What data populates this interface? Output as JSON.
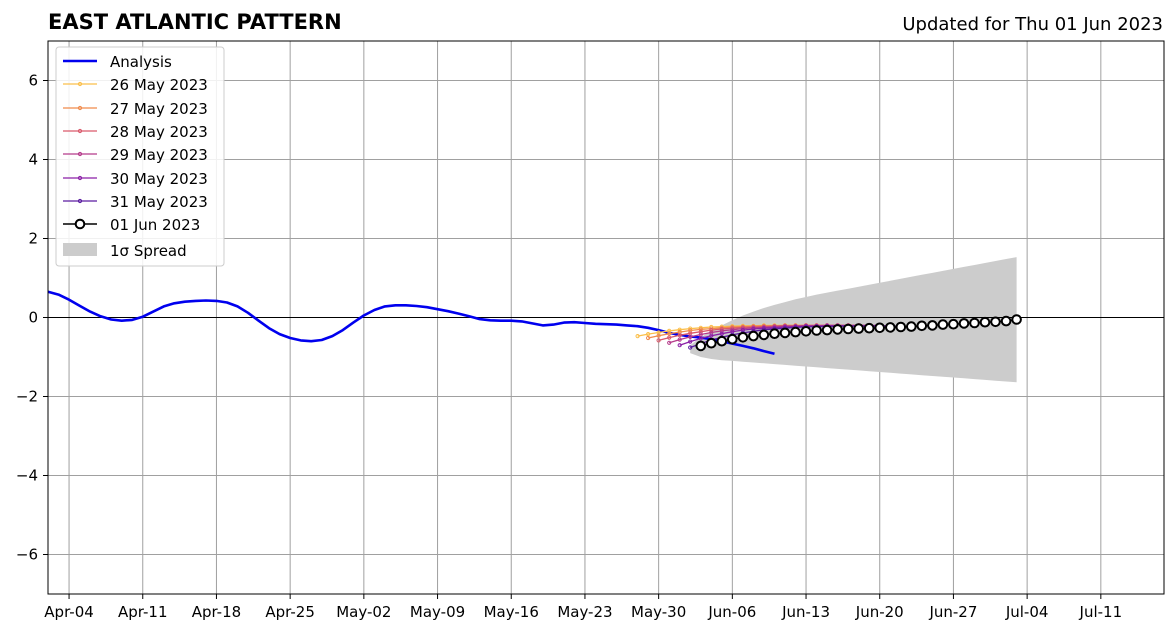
{
  "chart_data": {
    "type": "line",
    "title": "EAST ATLANTIC PATTERN",
    "subtitle": "Updated for Thu 01 Jun 2023",
    "xlabel": "",
    "ylabel": "",
    "xlim": [
      "2023-04-02",
      "2023-07-17"
    ],
    "ylim": [
      -7,
      7
    ],
    "grid": true,
    "legend_position": "top-left",
    "x_tick_labels": [
      "Apr-04",
      "Apr-11",
      "Apr-18",
      "Apr-25",
      "May-02",
      "May-09",
      "May-16",
      "May-23",
      "May-30",
      "Jun-06",
      "Jun-13",
      "Jun-20",
      "Jun-27",
      "Jul-04",
      "Jul-11"
    ],
    "x_tick_dates": [
      "2023-04-04",
      "2023-04-11",
      "2023-04-18",
      "2023-04-25",
      "2023-05-02",
      "2023-05-09",
      "2023-05-16",
      "2023-05-23",
      "2023-05-30",
      "2023-06-06",
      "2023-06-13",
      "2023-06-20",
      "2023-06-27",
      "2023-07-04",
      "2023-07-11"
    ],
    "y_tick_labels": [
      "6",
      "4",
      "2",
      "0",
      "−2",
      "−4",
      "−6"
    ],
    "y_tick_values": [
      6,
      4,
      2,
      0,
      -2,
      -4,
      -6
    ],
    "legend": {
      "analysis": "Analysis",
      "may26": "26 May 2023",
      "may27": "27 May 2023",
      "may28": "28 May 2023",
      "may29": "29 May 2023",
      "may30": "30 May 2023",
      "may31": "31 May 2023",
      "jun01": "01 Jun 2023",
      "spread": "1σ Spread"
    },
    "colors": {
      "analysis": "#0000ee",
      "may26": "#fbbf4a",
      "may27": "#f08a4b",
      "may28": "#d9596b",
      "may29": "#b53a8a",
      "may30": "#8a1fa6",
      "may31": "#5a1ba0",
      "jun01": "#000000",
      "spread": "#cccccc"
    },
    "series": [
      {
        "name": "Analysis",
        "start": "2023-04-02",
        "values": [
          0.65,
          0.58,
          0.45,
          0.3,
          0.15,
          0.03,
          -0.05,
          -0.08,
          -0.06,
          0.02,
          0.15,
          0.28,
          0.36,
          0.4,
          0.42,
          0.43,
          0.42,
          0.38,
          0.28,
          0.12,
          -0.08,
          -0.27,
          -0.42,
          -0.52,
          -0.58,
          -0.6,
          -0.57,
          -0.47,
          -0.32,
          -0.13,
          0.05,
          0.19,
          0.28,
          0.31,
          0.31,
          0.29,
          0.26,
          0.21,
          0.16,
          0.1,
          0.03,
          -0.04,
          -0.07,
          -0.08,
          -0.08,
          -0.1,
          -0.15,
          -0.2,
          -0.18,
          -0.13,
          -0.12,
          -0.14,
          -0.16,
          -0.17,
          -0.18,
          -0.2,
          -0.22,
          -0.26,
          -0.32,
          -0.39,
          -0.44,
          -0.48,
          -0.51,
          -0.55,
          -0.6,
          -0.66,
          -0.72,
          -0.78,
          -0.85,
          -0.92
        ]
      },
      {
        "name": "26 May 2023",
        "start": "2023-05-28",
        "values": [
          -0.47,
          -0.42,
          -0.38,
          -0.34,
          -0.31,
          -0.28,
          -0.26,
          -0.24,
          -0.23,
          -0.22,
          -0.21,
          -0.21,
          -0.2,
          -0.2,
          -0.2,
          -0.2,
          -0.2,
          -0.2,
          -0.2,
          -0.2,
          -0.2
        ]
      },
      {
        "name": "27 May 2023",
        "start": "2023-05-29",
        "values": [
          -0.52,
          -0.46,
          -0.41,
          -0.37,
          -0.33,
          -0.3,
          -0.28,
          -0.26,
          -0.24,
          -0.23,
          -0.22,
          -0.21,
          -0.21,
          -0.2,
          -0.2,
          -0.2,
          -0.2,
          -0.2,
          -0.2,
          -0.2,
          -0.2
        ]
      },
      {
        "name": "28 May 2023",
        "start": "2023-05-30",
        "values": [
          -0.58,
          -0.51,
          -0.45,
          -0.4,
          -0.36,
          -0.32,
          -0.29,
          -0.27,
          -0.25,
          -0.24,
          -0.23,
          -0.22,
          -0.21,
          -0.21,
          -0.2,
          -0.2,
          -0.2,
          -0.2,
          -0.2,
          -0.2,
          -0.2
        ]
      },
      {
        "name": "29 May 2023",
        "start": "2023-05-31",
        "values": [
          -0.64,
          -0.56,
          -0.49,
          -0.43,
          -0.38,
          -0.34,
          -0.31,
          -0.28,
          -0.26,
          -0.25,
          -0.23,
          -0.22,
          -0.22,
          -0.21,
          -0.21,
          -0.2,
          -0.2,
          -0.2,
          -0.2,
          -0.2,
          -0.2
        ]
      },
      {
        "name": "30 May 2023",
        "start": "2023-06-01",
        "values": [
          -0.7,
          -0.61,
          -0.53,
          -0.46,
          -0.41,
          -0.36,
          -0.32,
          -0.29,
          -0.27,
          -0.26,
          -0.24,
          -0.23,
          -0.22,
          -0.22,
          -0.21,
          -0.21,
          -0.21,
          -0.21,
          -0.21,
          -0.21,
          -0.21
        ]
      },
      {
        "name": "31 May 2023",
        "start": "2023-06-02",
        "values": [
          -0.76,
          -0.66,
          -0.57,
          -0.5,
          -0.44,
          -0.39,
          -0.35,
          -0.31,
          -0.29,
          -0.27,
          -0.25,
          -0.24,
          -0.23,
          -0.23,
          -0.22,
          -0.22,
          -0.22,
          -0.22,
          -0.22,
          -0.22,
          -0.22
        ]
      },
      {
        "name": "01 Jun 2023",
        "start": "2023-06-03",
        "values": [
          -0.72,
          -0.65,
          -0.6,
          -0.55,
          -0.5,
          -0.47,
          -0.44,
          -0.41,
          -0.39,
          -0.37,
          -0.35,
          -0.33,
          -0.32,
          -0.3,
          -0.29,
          -0.28,
          -0.27,
          -0.26,
          -0.25,
          -0.24,
          -0.23,
          -0.21,
          -0.2,
          -0.18,
          -0.17,
          -0.15,
          -0.14,
          -0.12,
          -0.11,
          -0.09,
          -0.05
        ]
      }
    ],
    "spread": {
      "name": "1σ Spread",
      "start": "2023-06-02",
      "upper": [
        -0.7,
        -0.5,
        -0.34,
        -0.2,
        -0.07,
        0.05,
        0.15,
        0.24,
        0.32,
        0.39,
        0.46,
        0.52,
        0.58,
        0.63,
        0.68,
        0.73,
        0.78,
        0.83,
        0.88,
        0.93,
        0.98,
        1.03,
        1.08,
        1.13,
        1.18,
        1.23,
        1.28,
        1.33,
        1.38,
        1.43,
        1.48,
        1.53
      ],
      "lower": [
        -0.9,
        -1.0,
        -1.05,
        -1.08,
        -1.1,
        -1.12,
        -1.14,
        -1.16,
        -1.18,
        -1.2,
        -1.22,
        -1.24,
        -1.26,
        -1.28,
        -1.3,
        -1.32,
        -1.34,
        -1.36,
        -1.38,
        -1.4,
        -1.42,
        -1.44,
        -1.46,
        -1.48,
        -1.5,
        -1.52,
        -1.54,
        -1.56,
        -1.58,
        -1.6,
        -1.62,
        -1.64
      ]
    }
  }
}
